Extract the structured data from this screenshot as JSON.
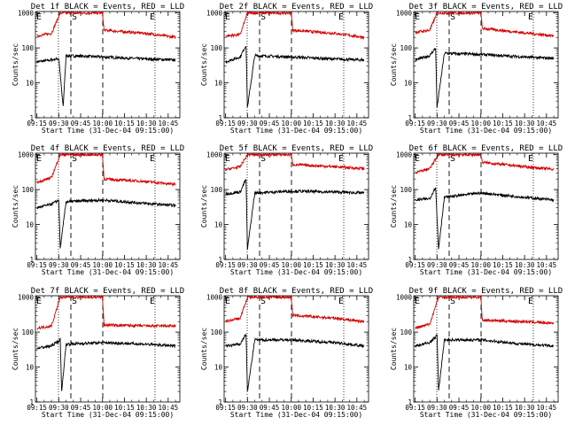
{
  "chart_data": [
    {
      "type": "line",
      "title": "Det 1f BLACK = Events, RED = LLD",
      "xlabel": "Start Time (31-Dec-04 09:15:00)",
      "ylabel": "Counts/sec",
      "x_ticks": [
        "09:15",
        "09:30",
        "09:45",
        "10:00",
        "10:15",
        "10:30",
        "10:45"
      ],
      "y_ticks": [
        "1",
        "10",
        "100",
        "1000"
      ],
      "ylim": [
        1,
        1100
      ],
      "markers": [
        "E",
        "S",
        "E"
      ],
      "series": [
        {
          "name": "Events",
          "color": "#000000",
          "values": [
            {
              "t": "09:15",
              "v": 40
            },
            {
              "t": "09:25",
              "v": 45
            },
            {
              "t": "09:30",
              "v": 50
            },
            {
              "t": "09:33",
              "v": 2
            },
            {
              "t": "09:35",
              "v": 60
            },
            {
              "t": "10:00",
              "v": 55
            },
            {
              "t": "10:30",
              "v": 48
            },
            {
              "t": "10:50",
              "v": 45
            }
          ]
        },
        {
          "name": "LLD",
          "color": "#d40000",
          "values": [
            {
              "t": "09:15",
              "v": 220
            },
            {
              "t": "09:25",
              "v": 260
            },
            {
              "t": "09:31",
              "v": 1000
            },
            {
              "t": "10:00",
              "v": 1000
            },
            {
              "t": "10:01",
              "v": 320
            },
            {
              "t": "10:30",
              "v": 260
            },
            {
              "t": "10:50",
              "v": 200
            }
          ]
        }
      ]
    },
    {
      "type": "line",
      "title": "Det 2f BLACK = Events, RED = LLD",
      "xlabel": "Start Time (31-Dec-04 09:15:00)",
      "ylabel": "Counts/sec",
      "x_ticks": [
        "09:15",
        "09:30",
        "09:45",
        "10:00",
        "10:15",
        "10:30",
        "10:45"
      ],
      "y_ticks": [
        "1",
        "10",
        "100",
        "1000"
      ],
      "ylim": [
        1,
        1100
      ],
      "markers": [
        "E",
        "S",
        "E"
      ],
      "series": [
        {
          "name": "Events",
          "color": "#000000",
          "values": [
            {
              "t": "09:15",
              "v": 40
            },
            {
              "t": "09:25",
              "v": 55
            },
            {
              "t": "09:29",
              "v": 120
            },
            {
              "t": "09:30",
              "v": 2
            },
            {
              "t": "09:35",
              "v": 60
            },
            {
              "t": "10:00",
              "v": 55
            },
            {
              "t": "10:30",
              "v": 48
            },
            {
              "t": "10:50",
              "v": 45
            }
          ]
        },
        {
          "name": "LLD",
          "color": "#d40000",
          "values": [
            {
              "t": "09:15",
              "v": 220
            },
            {
              "t": "09:25",
              "v": 240
            },
            {
              "t": "09:30",
              "v": 1000
            },
            {
              "t": "10:00",
              "v": 1000
            },
            {
              "t": "10:01",
              "v": 320
            },
            {
              "t": "10:30",
              "v": 260
            },
            {
              "t": "10:50",
              "v": 200
            }
          ]
        }
      ]
    },
    {
      "type": "line",
      "title": "Det 3f BLACK = Events, RED = LLD",
      "xlabel": "Start Time (31-Dec-04 09:15:00)",
      "ylabel": "Counts/sec",
      "x_ticks": [
        "09:15",
        "09:30",
        "09:45",
        "10:00",
        "10:15",
        "10:30",
        "10:45"
      ],
      "y_ticks": [
        "1",
        "10",
        "100",
        "1000"
      ],
      "ylim": [
        1,
        1100
      ],
      "markers": [
        "E",
        "S",
        "E"
      ],
      "series": [
        {
          "name": "Events",
          "color": "#000000",
          "values": [
            {
              "t": "09:15",
              "v": 45
            },
            {
              "t": "09:25",
              "v": 60
            },
            {
              "t": "09:29",
              "v": 100
            },
            {
              "t": "09:30",
              "v": 2
            },
            {
              "t": "09:35",
              "v": 70
            },
            {
              "t": "10:00",
              "v": 65
            },
            {
              "t": "10:30",
              "v": 55
            },
            {
              "t": "10:50",
              "v": 50
            }
          ]
        },
        {
          "name": "LLD",
          "color": "#d40000",
          "values": [
            {
              "t": "09:15",
              "v": 280
            },
            {
              "t": "09:25",
              "v": 320
            },
            {
              "t": "09:30",
              "v": 1000
            },
            {
              "t": "10:00",
              "v": 1000
            },
            {
              "t": "10:01",
              "v": 360
            },
            {
              "t": "10:30",
              "v": 270
            },
            {
              "t": "10:50",
              "v": 220
            }
          ]
        }
      ]
    },
    {
      "type": "line",
      "title": "Det 4f BLACK = Events, RED = LLD",
      "xlabel": "Start Time (31-Dec-04 09:15:00)",
      "ylabel": "Counts/sec",
      "x_ticks": [
        "09:15",
        "09:30",
        "09:45",
        "10:00",
        "10:15",
        "10:30",
        "10:45"
      ],
      "y_ticks": [
        "1",
        "10",
        "100",
        "1000"
      ],
      "ylim": [
        1,
        1100
      ],
      "markers": [
        "E",
        "S",
        "E"
      ],
      "series": [
        {
          "name": "Events",
          "color": "#000000",
          "values": [
            {
              "t": "09:15",
              "v": 30
            },
            {
              "t": "09:25",
              "v": 38
            },
            {
              "t": "09:30",
              "v": 50
            },
            {
              "t": "09:31",
              "v": 2
            },
            {
              "t": "09:35",
              "v": 45
            },
            {
              "t": "10:00",
              "v": 50
            },
            {
              "t": "10:30",
              "v": 40
            },
            {
              "t": "10:50",
              "v": 35
            }
          ]
        },
        {
          "name": "LLD",
          "color": "#d40000",
          "values": [
            {
              "t": "09:15",
              "v": 160
            },
            {
              "t": "09:25",
              "v": 220
            },
            {
              "t": "09:31",
              "v": 1000
            },
            {
              "t": "10:00",
              "v": 1000
            },
            {
              "t": "10:01",
              "v": 200
            },
            {
              "t": "10:30",
              "v": 170
            },
            {
              "t": "10:50",
              "v": 140
            }
          ]
        }
      ]
    },
    {
      "type": "line",
      "title": "Det 5f BLACK = Events, RED = LLD",
      "xlabel": "Start Time (31-Dec-04 09:15:00)",
      "ylabel": "Counts/sec",
      "x_ticks": [
        "09:15",
        "09:30",
        "09:45",
        "10:00",
        "10:15",
        "10:30",
        "10:45"
      ],
      "y_ticks": [
        "1",
        "10",
        "100",
        "1000"
      ],
      "ylim": [
        1,
        1100
      ],
      "markers": [
        "E",
        "S",
        "E"
      ],
      "series": [
        {
          "name": "Events",
          "color": "#000000",
          "values": [
            {
              "t": "09:15",
              "v": 75
            },
            {
              "t": "09:25",
              "v": 85
            },
            {
              "t": "09:29",
              "v": 200
            },
            {
              "t": "09:30",
              "v": 2
            },
            {
              "t": "09:35",
              "v": 80
            },
            {
              "t": "10:00",
              "v": 90
            },
            {
              "t": "10:30",
              "v": 85
            },
            {
              "t": "10:50",
              "v": 80
            }
          ]
        },
        {
          "name": "LLD",
          "color": "#d40000",
          "values": [
            {
              "t": "09:15",
              "v": 370
            },
            {
              "t": "09:25",
              "v": 450
            },
            {
              "t": "09:30",
              "v": 1000
            },
            {
              "t": "10:00",
              "v": 1000
            },
            {
              "t": "10:01",
              "v": 520
            },
            {
              "t": "10:30",
              "v": 450
            },
            {
              "t": "10:50",
              "v": 400
            }
          ]
        }
      ]
    },
    {
      "type": "line",
      "title": "Det 6f BLACK = Events, RED = LLD",
      "xlabel": "Start Time (31-Dec-04 09:15:00)",
      "ylabel": "Counts/sec",
      "x_ticks": [
        "09:15",
        "09:30",
        "09:45",
        "10:00",
        "10:15",
        "10:30",
        "10:45"
      ],
      "y_ticks": [
        "1",
        "10",
        "100",
        "1000"
      ],
      "ylim": [
        1,
        1100
      ],
      "markers": [
        "E",
        "S",
        "E"
      ],
      "series": [
        {
          "name": "Events",
          "color": "#000000",
          "values": [
            {
              "t": "09:15",
              "v": 50
            },
            {
              "t": "09:25",
              "v": 55
            },
            {
              "t": "09:29",
              "v": 120
            },
            {
              "t": "09:31",
              "v": 2
            },
            {
              "t": "09:35",
              "v": 60
            },
            {
              "t": "10:00",
              "v": 80
            },
            {
              "t": "10:30",
              "v": 60
            },
            {
              "t": "10:50",
              "v": 50
            }
          ]
        },
        {
          "name": "LLD",
          "color": "#d40000",
          "values": [
            {
              "t": "09:15",
              "v": 300
            },
            {
              "t": "09:25",
              "v": 400
            },
            {
              "t": "09:31",
              "v": 1000
            },
            {
              "t": "10:00",
              "v": 1000
            },
            {
              "t": "10:01",
              "v": 600
            },
            {
              "t": "10:30",
              "v": 450
            },
            {
              "t": "10:50",
              "v": 380
            }
          ]
        }
      ]
    },
    {
      "type": "line",
      "title": "Det 7f BLACK = Events, RED = LLD",
      "xlabel": "Start Time (31-Dec-04 09:15:00)",
      "ylabel": "Counts/sec",
      "x_ticks": [
        "09:15",
        "09:30",
        "09:45",
        "10:00",
        "10:15",
        "10:30",
        "10:45"
      ],
      "y_ticks": [
        "1",
        "10",
        "100",
        "1000"
      ],
      "ylim": [
        1,
        1100
      ],
      "markers": [
        "E",
        "S",
        "E"
      ],
      "series": [
        {
          "name": "Events",
          "color": "#000000",
          "values": [
            {
              "t": "09:15",
              "v": 35
            },
            {
              "t": "09:25",
              "v": 40
            },
            {
              "t": "09:31",
              "v": 60
            },
            {
              "t": "09:32",
              "v": 2
            },
            {
              "t": "09:35",
              "v": 45
            },
            {
              "t": "10:00",
              "v": 50
            },
            {
              "t": "10:30",
              "v": 45
            },
            {
              "t": "10:50",
              "v": 40
            }
          ]
        },
        {
          "name": "LLD",
          "color": "#d40000",
          "values": [
            {
              "t": "09:15",
              "v": 130
            },
            {
              "t": "09:25",
              "v": 150
            },
            {
              "t": "09:31",
              "v": 1000
            },
            {
              "t": "10:00",
              "v": 1000
            },
            {
              "t": "10:01",
              "v": 160
            },
            {
              "t": "10:30",
              "v": 150
            },
            {
              "t": "10:50",
              "v": 150
            }
          ]
        }
      ]
    },
    {
      "type": "line",
      "title": "Det 8f BLACK = Events, RED = LLD",
      "xlabel": "Start Time (31-Dec-04 09:15:00)",
      "ylabel": "Counts/sec",
      "x_ticks": [
        "09:15",
        "09:30",
        "09:45",
        "10:00",
        "10:15",
        "10:30",
        "10:45"
      ],
      "y_ticks": [
        "1",
        "10",
        "100",
        "1000"
      ],
      "ylim": [
        1,
        1100
      ],
      "markers": [
        "E",
        "S",
        "E"
      ],
      "series": [
        {
          "name": "Events",
          "color": "#000000",
          "values": [
            {
              "t": "09:15",
              "v": 40
            },
            {
              "t": "09:25",
              "v": 45
            },
            {
              "t": "09:29",
              "v": 90
            },
            {
              "t": "09:30",
              "v": 2
            },
            {
              "t": "09:35",
              "v": 60
            },
            {
              "t": "10:00",
              "v": 60
            },
            {
              "t": "10:30",
              "v": 50
            },
            {
              "t": "10:50",
              "v": 40
            }
          ]
        },
        {
          "name": "LLD",
          "color": "#d40000",
          "values": [
            {
              "t": "09:15",
              "v": 200
            },
            {
              "t": "09:25",
              "v": 250
            },
            {
              "t": "09:30",
              "v": 1000
            },
            {
              "t": "10:00",
              "v": 1000
            },
            {
              "t": "10:01",
              "v": 300
            },
            {
              "t": "10:30",
              "v": 250
            },
            {
              "t": "10:50",
              "v": 200
            }
          ]
        }
      ]
    },
    {
      "type": "line",
      "title": "Det 9f BLACK = Events, RED = LLD",
      "xlabel": "Start Time (31-Dec-04 09:15:00)",
      "ylabel": "Counts/sec",
      "x_ticks": [
        "09:15",
        "09:30",
        "09:45",
        "10:00",
        "10:15",
        "10:30",
        "10:45"
      ],
      "y_ticks": [
        "1",
        "10",
        "100",
        "1000"
      ],
      "ylim": [
        1,
        1100
      ],
      "markers": [
        "E",
        "S",
        "E"
      ],
      "series": [
        {
          "name": "Events",
          "color": "#000000",
          "values": [
            {
              "t": "09:15",
              "v": 40
            },
            {
              "t": "09:25",
              "v": 50
            },
            {
              "t": "09:30",
              "v": 80
            },
            {
              "t": "09:31",
              "v": 2
            },
            {
              "t": "09:35",
              "v": 60
            },
            {
              "t": "10:00",
              "v": 60
            },
            {
              "t": "10:30",
              "v": 45
            },
            {
              "t": "10:50",
              "v": 40
            }
          ]
        },
        {
          "name": "LLD",
          "color": "#d40000",
          "values": [
            {
              "t": "09:15",
              "v": 130
            },
            {
              "t": "09:25",
              "v": 170
            },
            {
              "t": "09:31",
              "v": 1000
            },
            {
              "t": "10:00",
              "v": 1000
            },
            {
              "t": "10:01",
              "v": 220
            },
            {
              "t": "10:30",
              "v": 200
            },
            {
              "t": "10:50",
              "v": 180
            }
          ]
        }
      ]
    }
  ]
}
